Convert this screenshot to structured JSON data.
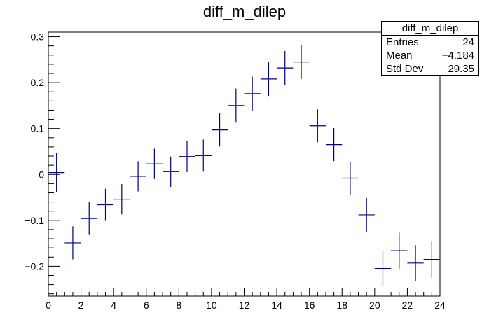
{
  "chart_data": {
    "type": "scatter",
    "title": "diff_m_dilep",
    "xlabel": "",
    "ylabel": "",
    "xlim": [
      0,
      24
    ],
    "ylim": [
      -0.265,
      0.31
    ],
    "grid": false,
    "x_ticks": [
      0,
      2,
      4,
      6,
      8,
      10,
      12,
      14,
      16,
      18,
      20,
      22,
      24
    ],
    "y_ticks": [
      -0.2,
      -0.1,
      0,
      0.1,
      0.2,
      0.3
    ],
    "y_tick_labels": [
      "−0.2",
      "−0.1",
      "0",
      "0.1",
      "0.2",
      "0.3"
    ],
    "series": [
      {
        "color": "#000080",
        "points": [
          {
            "x": 0.5,
            "y": 0.004,
            "err": 0.043
          },
          {
            "x": 1.5,
            "y": -0.149,
            "err": 0.036
          },
          {
            "x": 2.5,
            "y": -0.096,
            "err": 0.036
          },
          {
            "x": 3.5,
            "y": -0.066,
            "err": 0.035
          },
          {
            "x": 4.5,
            "y": -0.054,
            "err": 0.033
          },
          {
            "x": 5.5,
            "y": -0.004,
            "err": 0.033
          },
          {
            "x": 6.5,
            "y": 0.023,
            "err": 0.033
          },
          {
            "x": 7.5,
            "y": 0.006,
            "err": 0.033
          },
          {
            "x": 8.5,
            "y": 0.039,
            "err": 0.034
          },
          {
            "x": 9.5,
            "y": 0.041,
            "err": 0.035
          },
          {
            "x": 10.5,
            "y": 0.097,
            "err": 0.036
          },
          {
            "x": 11.5,
            "y": 0.15,
            "err": 0.037
          },
          {
            "x": 12.5,
            "y": 0.176,
            "err": 0.037
          },
          {
            "x": 13.5,
            "y": 0.208,
            "err": 0.037
          },
          {
            "x": 14.5,
            "y": 0.232,
            "err": 0.037
          },
          {
            "x": 15.5,
            "y": 0.245,
            "err": 0.037
          },
          {
            "x": 16.5,
            "y": 0.106,
            "err": 0.036
          },
          {
            "x": 17.5,
            "y": 0.065,
            "err": 0.036
          },
          {
            "x": 18.5,
            "y": -0.008,
            "err": 0.036
          },
          {
            "x": 19.5,
            "y": -0.088,
            "err": 0.037
          },
          {
            "x": 20.5,
            "y": -0.205,
            "err": 0.038
          },
          {
            "x": 21.5,
            "y": -0.166,
            "err": 0.039
          },
          {
            "x": 22.5,
            "y": -0.193,
            "err": 0.039
          },
          {
            "x": 23.5,
            "y": -0.185,
            "err": 0.04
          }
        ]
      }
    ]
  },
  "stats": {
    "name": "diff_m_dilep",
    "entries_label": "Entries",
    "entries_value": "24",
    "mean_label": "Mean",
    "mean_value": "−4.184",
    "std_label": "Std Dev",
    "std_value": "29.35"
  }
}
